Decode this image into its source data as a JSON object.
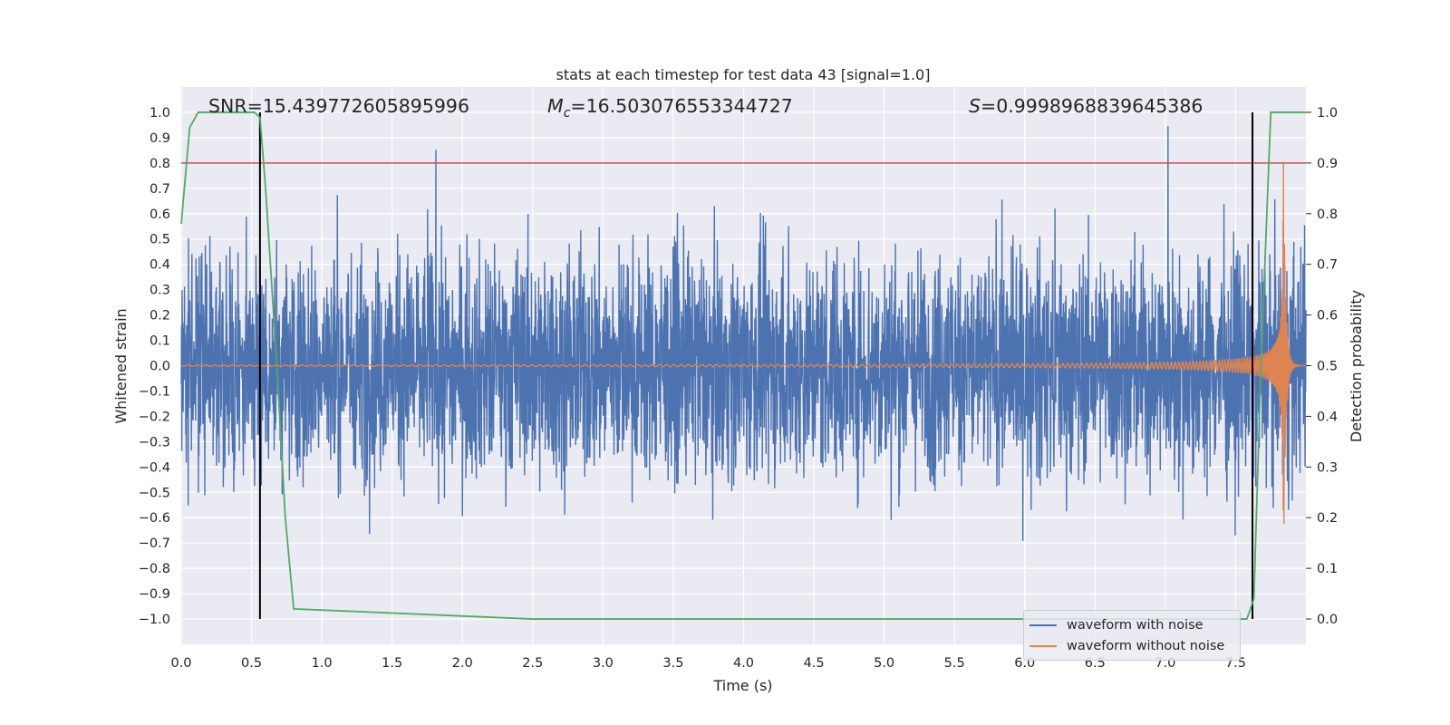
{
  "chart_data": {
    "type": "line",
    "title": "stats at each timestep for test data 43 [signal=1.0]",
    "xlabel": "Time (s)",
    "ylabel": "Whitened strain",
    "y2label": "Detection probability",
    "xlim": [
      0.0,
      8.0
    ],
    "ylim": [
      -1.1,
      1.1
    ],
    "y2lim": [
      -0.05,
      1.05
    ],
    "x_ticks": [
      "0.0",
      "0.5",
      "1.0",
      "1.5",
      "2.0",
      "2.5",
      "3.0",
      "3.5",
      "4.0",
      "4.5",
      "5.0",
      "5.5",
      "6.0",
      "6.5",
      "7.0",
      "7.5"
    ],
    "y_ticks": [
      "1.0",
      "0.9",
      "0.8",
      "0.7",
      "0.6",
      "0.5",
      "0.4",
      "0.3",
      "0.2",
      "0.1",
      "0.0",
      "−0.1",
      "−0.2",
      "−0.3",
      "−0.4",
      "−0.5",
      "−0.6",
      "−0.7",
      "−0.8",
      "−0.9",
      "−1.0"
    ],
    "y2_ticks": [
      "1.0",
      "0.9",
      "0.8",
      "0.7",
      "0.6",
      "0.5",
      "0.4",
      "0.3",
      "0.2",
      "0.1",
      "0.0"
    ],
    "annotations": {
      "snr": "SNR=15.439772605895996",
      "mc_symbol": "M",
      "mc_sub": "c",
      "mc_value": "=16.503076553344727",
      "s_symbol": "S",
      "s_value": "=0.9998968839645386"
    },
    "threshold": {
      "y2": 0.9,
      "color": "#c44e52"
    },
    "vertical_lines": [
      0.56,
      7.62
    ],
    "series": [
      {
        "name": "waveform with noise",
        "axis": "left",
        "color": "#4c72b0",
        "noise_amplitude": 0.42,
        "peak": 0.98,
        "trough": -1.0
      },
      {
        "name": "waveform without noise",
        "axis": "left",
        "color": "#dd8452",
        "merger_time": 7.84,
        "peak_amplitude": 0.8
      },
      {
        "name": "detection probability",
        "axis": "right",
        "color": "#55a868",
        "x": [
          0.0,
          0.06,
          0.12,
          0.2,
          0.3,
          0.45,
          0.52,
          0.56,
          0.6,
          0.68,
          0.74,
          0.8,
          2.5,
          7.2,
          7.5,
          7.58,
          7.63,
          7.68,
          7.75,
          8.0
        ],
        "y": [
          0.78,
          0.97,
          1.0,
          1.0,
          1.0,
          1.0,
          1.0,
          0.99,
          0.85,
          0.5,
          0.2,
          0.02,
          0.0,
          0.0,
          0.0,
          0.0,
          0.04,
          0.5,
          1.0,
          1.0
        ]
      }
    ]
  }
}
